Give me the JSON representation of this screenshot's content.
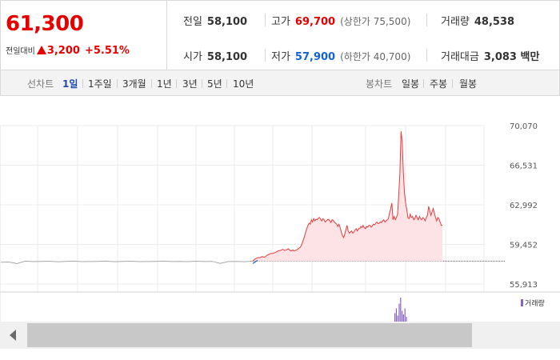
{
  "summary": {
    "current_price": "61,300",
    "change_label": "전일대비",
    "change_amount": "3,200",
    "change_percent": "+5.51%",
    "prev_close": {
      "label": "전일",
      "value": "58,100"
    },
    "high": {
      "label": "고가",
      "value": "69,700",
      "limit": "(상한가 75,500)"
    },
    "volume": {
      "label": "거래량",
      "value": "48,538"
    },
    "open": {
      "label": "시가",
      "value": "58,100"
    },
    "low": {
      "label": "저가",
      "value": "57,900",
      "limit": "(하한가 40,700)"
    },
    "turnover": {
      "label": "거래대금",
      "value": "3,083 백만"
    }
  },
  "toolbar": {
    "line_chart_label": "선차트",
    "periods": [
      "1일",
      "1주일",
      "3개월",
      "1년",
      "3년",
      "5년",
      "10년"
    ],
    "active_period": "1일",
    "candle_chart_label": "봉차트",
    "candle_periods": [
      "일봉",
      "주봉",
      "월봉"
    ]
  },
  "volume_legend": "거래량",
  "colors": {
    "up_red": "#e60000",
    "down_blue": "#1463d6",
    "line_up": "#e83b3b",
    "fill_up": "#fde3e6",
    "line_pre": "#a8a8a8",
    "volume_bar": "#8a62c4"
  },
  "chart_data": {
    "type": "line",
    "y_ticks": [
      "70,070",
      "66,531",
      "62,992",
      "59,452",
      "55,913"
    ],
    "ylim": [
      55913,
      70070
    ],
    "prev_close_reference": 58100,
    "pre_market_series": [
      58000,
      58020,
      57880,
      58100,
      58060,
      58080,
      58090,
      58040,
      58080,
      58100,
      58060,
      58070,
      58080,
      58100,
      58050,
      58080,
      58090,
      58060,
      58070,
      58080,
      58100,
      58070,
      58080,
      58060,
      58090,
      58070,
      58080,
      57900,
      58070,
      58080,
      58050,
      58100
    ],
    "session_series": [
      58100,
      58200,
      58300,
      58350,
      58400,
      58420,
      58400,
      58450,
      58500,
      58480,
      58450,
      58500,
      58600,
      58650,
      58700,
      58750,
      58800,
      58780,
      58820,
      58850,
      58900,
      58950,
      59000,
      59050,
      59050,
      59100,
      59150,
      59100,
      59050,
      59100,
      59150,
      59200,
      59100,
      59000,
      59050,
      59100,
      59000,
      59050,
      59100,
      59150,
      59250,
      59300,
      59450,
      59700,
      60000,
      60300,
      60700,
      61000,
      61300,
      61500,
      61400,
      61800,
      61600,
      61900,
      61700,
      61850,
      61800,
      61950,
      62000,
      61850,
      61700,
      61900,
      61800,
      61600,
      61700,
      61800,
      61850,
      61700,
      61550,
      61800,
      61750,
      61600,
      61500,
      61400,
      61200,
      61400,
      61100,
      60700,
      60400,
      60200,
      60500,
      60900,
      61300,
      60800,
      60600,
      60700,
      60800,
      60600,
      60700,
      60900,
      61000,
      60800,
      61000,
      61000,
      61200,
      61100,
      61300,
      61100,
      61000,
      61200,
      61150,
      61300,
      61300,
      61150,
      61250,
      61400,
      61350,
      61500,
      61600,
      61450,
      61500,
      61600,
      61550,
      61700,
      61800,
      61600,
      61700,
      61800,
      61900,
      62400,
      62800,
      63300,
      61800,
      62100,
      61800,
      62000,
      62300,
      64000,
      66000,
      69700,
      68800,
      66000,
      64200,
      63300,
      62700,
      62000,
      61900,
      62300,
      62000,
      62100,
      61800,
      61900,
      62200,
      62000,
      61800,
      62100,
      61900,
      61800,
      62000,
      61900,
      61700,
      62000,
      62200,
      63000,
      62600,
      62200,
      62500,
      62800,
      62400,
      62000,
      61700,
      62000,
      61900,
      61600,
      61300,
      61300
    ],
    "volume_spike_bars": [
      0.35,
      0.55,
      0.25,
      0.75,
      1.0,
      0.45,
      0.3,
      0.55,
      0.2
    ]
  }
}
